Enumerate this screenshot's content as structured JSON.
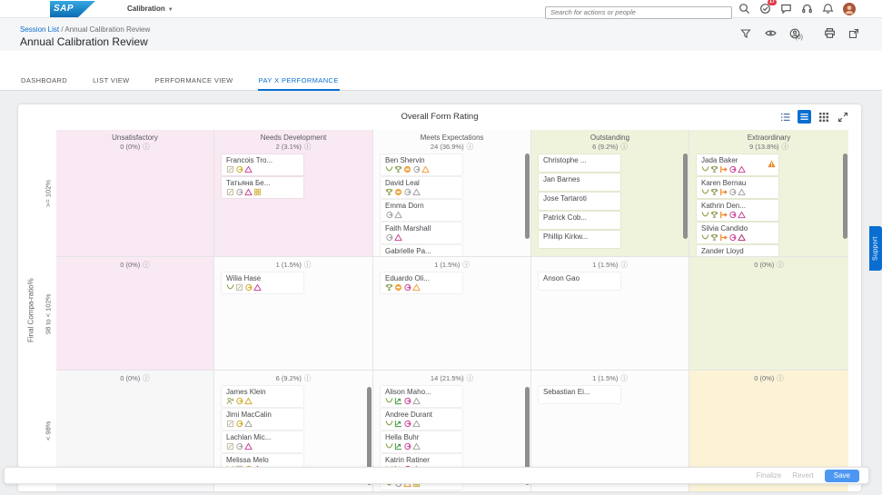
{
  "shell": {
    "logo": "SAP",
    "menu": "Calibration",
    "search_placeholder": "Search for actions or people",
    "todo_badge": "17"
  },
  "header": {
    "breadcrumb_link": "Session List",
    "breadcrumb_sep": "/",
    "breadcrumb_current": "Annual Calibration Review",
    "title": "Annual Calibration Review",
    "people_count": "(0)"
  },
  "tabs": [
    {
      "label": "DASHBOARD",
      "active": false
    },
    {
      "label": "LIST VIEW",
      "active": false
    },
    {
      "label": "PERFORMANCE VIEW",
      "active": false
    },
    {
      "label": "PAY X PERFORMANCE",
      "active": true
    }
  ],
  "support_tab": "Support",
  "footer": {
    "finalize": "Finalize",
    "revert": "Revert",
    "save": "Save"
  },
  "colors": {
    "accent": "#0a6ed1",
    "save_button": "#4d97f2",
    "icon": {
      "green": "#7fa33d",
      "olive": "#94a05f",
      "orange": "#f0a23c",
      "gray": "#a6a6a6",
      "pink": "#cc4b9b",
      "magenta": "#b03579",
      "yellow": "#cfae35",
      "deeporange": "#ee8625",
      "tan": "#b9b094",
      "chartgreen": "#3e9b3e"
    }
  },
  "matrix": {
    "title": "Overall Form Rating",
    "y_axis": "Final Compa-ratio%",
    "row_labels": [
      ">= 102%",
      "98 to < 102%",
      "< 98%"
    ],
    "columns": [
      "Unsatisfactory",
      "Needs Development",
      "Meets Expectations",
      "Outstanding",
      "Extraordinary"
    ],
    "rows": [
      {
        "label": ">= 102%",
        "cells": [
          {
            "count": "0 (0%)",
            "bg": "pink",
            "scroll": false,
            "people": []
          },
          {
            "count": "2 (3.1%)",
            "bg": "pink",
            "scroll": false,
            "people": [
              {
                "name": "Francois Tro...",
                "icons": [
                  "form-tan",
                  "loop-yellow",
                  "triangle-pink"
                ]
              },
              {
                "name": "Татьяна Бе...",
                "icons": [
                  "form-tan",
                  "loop-gray",
                  "triangle-pink",
                  "group-yellow"
                ]
              }
            ]
          },
          {
            "count": "24 (36.9%)",
            "bg": "white",
            "scroll": true,
            "people": [
              {
                "name": "Ben Shervin",
                "icons": [
                  "hands-green",
                  "trophy-olive",
                  "circle-orange",
                  "loop-gray",
                  "triangle-orange"
                ]
              },
              {
                "name": "David Leal",
                "icons": [
                  "trophy-olive",
                  "circle-orange",
                  "loop-gray",
                  "triangle-gray"
                ]
              },
              {
                "name": "Emma Dorn",
                "icons": [
                  "loop-gray",
                  "triangle-gray"
                ]
              },
              {
                "name": "Faith Marshall",
                "icons": [
                  "loop-gray",
                  "triangle-pink"
                ]
              },
              {
                "name": "Gabrielle Pa...",
                "icons": [
                  "loop-gray",
                  "triangle-gray"
                ]
              }
            ]
          },
          {
            "count": "6 (9.2%)",
            "bg": "green",
            "scroll": true,
            "people": [
              {
                "name": "Christophe ...",
                "icons": []
              },
              {
                "name": "Jan Barnes",
                "icons": []
              },
              {
                "name": "Jose Tartaroti",
                "icons": []
              },
              {
                "name": "Patrick Cob...",
                "icons": []
              },
              {
                "name": "Phillip Kirkw...",
                "icons": []
              }
            ]
          },
          {
            "count": "9 (13.8%)",
            "bg": "green",
            "scroll": true,
            "people": [
              {
                "name": "Jada Baker",
                "warning": true,
                "icons": [
                  "hands-green",
                  "trophy-olive",
                  "move-deeporange",
                  "loop-pink",
                  "triangle-pink"
                ]
              },
              {
                "name": "Karen Bernau",
                "icons": [
                  "hands-green",
                  "trophy-olive",
                  "move-deeporange",
                  "loop-gray",
                  "triangle-gray"
                ]
              },
              {
                "name": "Kathrin Den...",
                "icons": [
                  "hands-green",
                  "trophy-olive",
                  "move-deeporange",
                  "loop-pink",
                  "triangle-pink"
                ]
              },
              {
                "name": "Silvia Candido",
                "icons": [
                  "hands-green",
                  "trophy-olive",
                  "move-deeporange",
                  "loop-pink",
                  "triangle-magenta"
                ]
              },
              {
                "name": "Zander Lloyd",
                "icons": [
                  "trophy-olive",
                  "move-deeporange",
                  "loop-pink",
                  "triangle-pink"
                ]
              }
            ]
          }
        ]
      },
      {
        "label": "98 to < 102%",
        "cells": [
          {
            "count": "0 (0%)",
            "bg": "pink",
            "scroll": false,
            "people": []
          },
          {
            "count": "1 (1.5%)",
            "bg": "white",
            "scroll": false,
            "people": [
              {
                "name": "Wilia Hase",
                "icons": [
                  "hands-green",
                  "form-tan",
                  "loop-yellow",
                  "triangle-pink"
                ]
              }
            ]
          },
          {
            "count": "1 (1.5%)",
            "bg": "white",
            "scroll": false,
            "people": [
              {
                "name": "Eduardo Oli...",
                "icons": [
                  "trophy-olive",
                  "circle-orange",
                  "loop-pink",
                  "triangle-orange"
                ]
              }
            ]
          },
          {
            "count": "1 (1.5%)",
            "bg": "white",
            "scroll": false,
            "people": [
              {
                "name": "Anson Gao",
                "icons": []
              }
            ]
          },
          {
            "count": "0 (0%)",
            "bg": "green",
            "scroll": false,
            "people": []
          }
        ]
      },
      {
        "label": "< 98%",
        "cells": [
          {
            "count": "0 (0%)",
            "bg": "gray",
            "scroll": false,
            "people": []
          },
          {
            "count": "6 (9.2%)",
            "bg": "white",
            "scroll": true,
            "people": [
              {
                "name": "James Klein",
                "icons": [
                  "personadd-olive",
                  "loop-yellow",
                  "triangle-yellow"
                ]
              },
              {
                "name": "Jimi MacCalin",
                "icons": [
                  "form-tan",
                  "loop-yellow",
                  "triangle-gray"
                ]
              },
              {
                "name": "Lachlan Mic...",
                "icons": [
                  "form-tan",
                  "loop-gray",
                  "triangle-pink"
                ]
              },
              {
                "name": "Melissa Melo",
                "icons": [
                  "hands-green",
                  "form-tan",
                  "loop-yellow",
                  "triangle-pink"
                ]
              }
            ]
          },
          {
            "count": "14 (21.5%)",
            "bg": "white",
            "scroll": true,
            "people": [
              {
                "name": "Alison Maho...",
                "icons": [
                  "hands-green",
                  "chart-chartgreen",
                  "loop-pink",
                  "triangle-gray"
                ]
              },
              {
                "name": "Andree Durant",
                "icons": [
                  "hands-green",
                  "chart-chartgreen",
                  "loop-pink",
                  "triangle-gray"
                ]
              },
              {
                "name": "Hella Buhr",
                "icons": [
                  "hands-green",
                  "chart-chartgreen",
                  "loop-pink",
                  "triangle-gray"
                ]
              },
              {
                "name": "Katrin Ratiner",
                "icons": [
                  "hands-green",
                  "chart-chartgreen",
                  "loop-pink",
                  "triangle-gray"
                ]
              },
              {
                "name": "",
                "icons": [
                  "hands-green",
                  "loop-gray",
                  "triangle-orange",
                  "group-yellow"
                ]
              }
            ]
          },
          {
            "count": "1 (1.5%)",
            "bg": "white",
            "scroll": false,
            "people": [
              {
                "name": "Sebastian Ei...",
                "icons": []
              }
            ]
          },
          {
            "count": "0 (0%)",
            "bg": "yellow",
            "scroll": false,
            "people": []
          }
        ]
      }
    ]
  }
}
